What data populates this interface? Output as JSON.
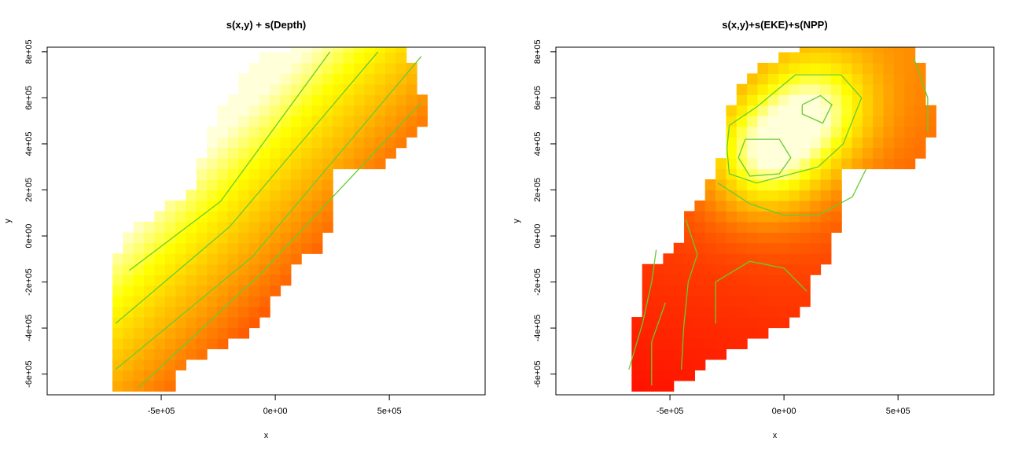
{
  "chart_data": [
    {
      "type": "heatmap",
      "title": "s(x,y) + s(Depth)",
      "xlabel": "x",
      "ylabel": "y",
      "xlim": [
        -1000000,
        920000
      ],
      "ylim": [
        -690000,
        820000
      ],
      "xticks": [
        -500000,
        0,
        500000
      ],
      "xtick_labels": [
        "-5e+05",
        "0e+00",
        "5e+05"
      ],
      "yticks": [
        -600000,
        -400000,
        -200000,
        0,
        200000,
        400000,
        600000,
        800000
      ],
      "ytick_labels": [
        "-6e+05",
        "-4e+05",
        "-2e+05",
        "0e+00",
        "2e+05",
        "4e+05",
        "6e+05",
        "8e+05"
      ],
      "cell_size": 46000,
      "color_scale": "heat (red → orange → yellow → white)",
      "contour_color": "#66cc33",
      "surface": "linear gradient, increasing toward upper-left",
      "domain_outline": [
        [
          -730000,
          -690000
        ],
        [
          -730000,
          -190000
        ],
        [
          -690000,
          -90000
        ],
        [
          -640000,
          10000
        ],
        [
          -500000,
          110000
        ],
        [
          -360000,
          220000
        ],
        [
          -300000,
          400000
        ],
        [
          -260000,
          520000
        ],
        [
          -180000,
          640000
        ],
        [
          -60000,
          780000
        ],
        [
          80000,
          830000
        ],
        [
          570000,
          840000
        ],
        [
          670000,
          520000
        ],
        [
          610000,
          420000
        ],
        [
          450000,
          300000
        ],
        [
          260000,
          280000
        ],
        [
          220000,
          -60000
        ],
        [
          120000,
          -100000
        ],
        [
          -10000,
          -280000
        ],
        [
          -110000,
          -420000
        ],
        [
          -300000,
          -520000
        ],
        [
          -420000,
          -580000
        ],
        [
          -470000,
          -690000
        ]
      ],
      "contours": [
        [
          [
            -640000,
            -150000
          ],
          [
            -240000,
            150000
          ],
          [
            240000,
            800000
          ]
        ],
        [
          [
            -700000,
            -380000
          ],
          [
            -200000,
            40000
          ],
          [
            450000,
            800000
          ]
        ],
        [
          [
            -700000,
            -580000
          ],
          [
            -100000,
            -90000
          ],
          [
            640000,
            780000
          ]
        ],
        [
          [
            -600000,
            -660000
          ],
          [
            -60000,
            -160000
          ],
          [
            640000,
            580000
          ]
        ]
      ]
    },
    {
      "type": "heatmap",
      "title": "s(x,y)+s(EKE)+s(NPP)",
      "xlabel": "x",
      "ylabel": "y",
      "xlim": [
        -1000000,
        920000
      ],
      "ylim": [
        -690000,
        820000
      ],
      "xticks": [
        -500000,
        0,
        500000
      ],
      "xtick_labels": [
        "-5e+05",
        "0e+00",
        "5e+05"
      ],
      "yticks": [
        -600000,
        -400000,
        -200000,
        0,
        200000,
        400000,
        600000,
        800000
      ],
      "ytick_labels": [
        "-6e+05",
        "-4e+05",
        "-2e+05",
        "0e+00",
        "2e+05",
        "4e+05",
        "6e+05",
        "8e+05"
      ],
      "cell_size": 46000,
      "color_scale": "heat (red → orange → yellow)",
      "contour_color": "#66cc33",
      "peaks": [
        [
          -90000,
          340000,
          1.0
        ],
        [
          150000,
          560000,
          0.85
        ]
      ],
      "domain_outline": [
        [
          -680000,
          -690000
        ],
        [
          -680000,
          -390000
        ],
        [
          -620000,
          -290000
        ],
        [
          -600000,
          -140000
        ],
        [
          -480000,
          -70000
        ],
        [
          -420000,
          90000
        ],
        [
          -330000,
          240000
        ],
        [
          -250000,
          360000
        ],
        [
          -260000,
          540000
        ],
        [
          -180000,
          680000
        ],
        [
          -40000,
          770000
        ],
        [
          80000,
          830000
        ],
        [
          570000,
          830000
        ],
        [
          670000,
          470000
        ],
        [
          570000,
          300000
        ],
        [
          260000,
          280000
        ],
        [
          220000,
          -80000
        ],
        [
          120000,
          -160000
        ],
        [
          110000,
          -280000
        ],
        [
          0,
          -380000
        ],
        [
          -230000,
          -490000
        ],
        [
          -420000,
          -610000
        ],
        [
          -510000,
          -690000
        ]
      ],
      "contours": [
        [
          [
            -240000,
            480000
          ],
          [
            -120000,
            560000
          ],
          [
            50000,
            700000
          ],
          [
            250000,
            700000
          ],
          [
            340000,
            600000
          ],
          [
            260000,
            400000
          ],
          [
            150000,
            300000
          ],
          [
            -120000,
            230000
          ],
          [
            -240000,
            270000
          ],
          [
            -250000,
            380000
          ],
          [
            -240000,
            480000
          ]
        ],
        [
          [
            -170000,
            420000
          ],
          [
            -20000,
            420000
          ],
          [
            30000,
            340000
          ],
          [
            -20000,
            270000
          ],
          [
            -150000,
            260000
          ],
          [
            -200000,
            340000
          ],
          [
            -170000,
            420000
          ]
        ],
        [
          [
            80000,
            570000
          ],
          [
            160000,
            610000
          ],
          [
            210000,
            570000
          ],
          [
            170000,
            490000
          ],
          [
            80000,
            530000
          ],
          [
            80000,
            570000
          ]
        ],
        [
          [
            -290000,
            230000
          ],
          [
            -150000,
            140000
          ],
          [
            0,
            90000
          ],
          [
            150000,
            90000
          ],
          [
            300000,
            170000
          ],
          [
            360000,
            290000
          ]
        ],
        [
          [
            -430000,
            70000
          ],
          [
            -380000,
            -80000
          ],
          [
            -420000,
            -200000
          ],
          [
            -440000,
            -400000
          ],
          [
            -450000,
            -580000
          ]
        ],
        [
          [
            -300000,
            -380000
          ],
          [
            -300000,
            -200000
          ],
          [
            -150000,
            -110000
          ],
          [
            0,
            -140000
          ],
          [
            100000,
            -240000
          ]
        ],
        [
          [
            -560000,
            -60000
          ],
          [
            -580000,
            -200000
          ],
          [
            -620000,
            -380000
          ],
          [
            -680000,
            -580000
          ]
        ],
        [
          [
            -520000,
            -290000
          ],
          [
            -580000,
            -460000
          ],
          [
            -580000,
            -650000
          ]
        ],
        [
          [
            570000,
            770000
          ],
          [
            630000,
            600000
          ],
          [
            630000,
            450000
          ]
        ]
      ]
    }
  ]
}
